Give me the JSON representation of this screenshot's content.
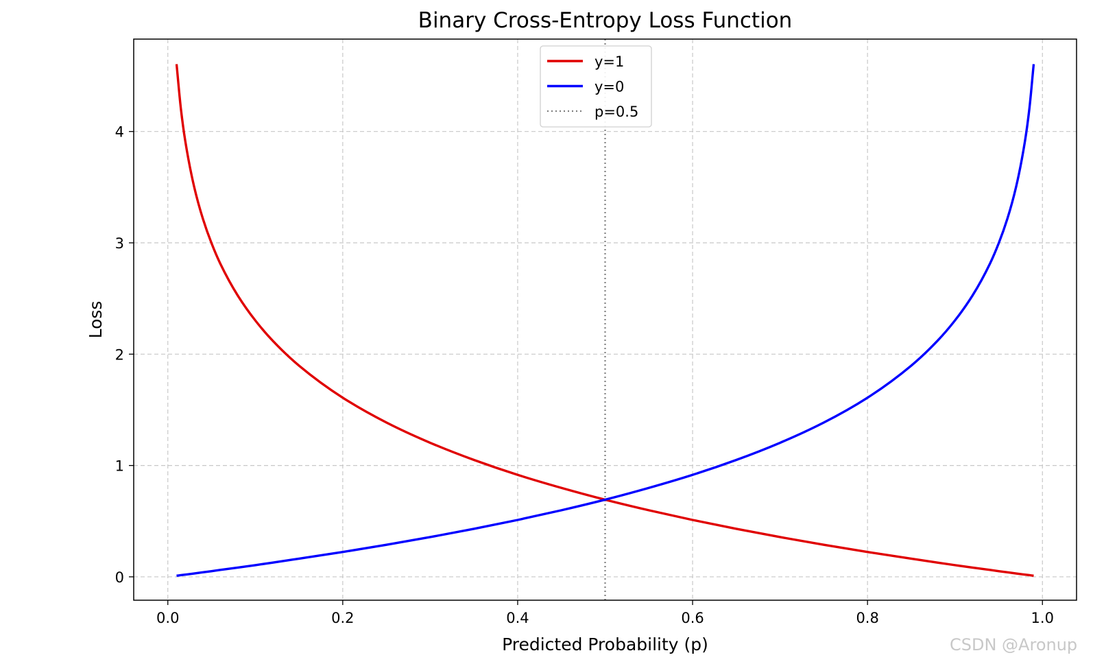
{
  "chart_data": {
    "type": "line",
    "title": "Binary Cross-Entropy Loss Function",
    "xlabel": "Predicted Probability (p)",
    "ylabel": "Loss",
    "xlim": [
      -0.039,
      1.039
    ],
    "ylim": [
      -0.21,
      4.83
    ],
    "xticks": [
      0.0,
      0.2,
      0.4,
      0.6,
      0.8,
      1.0
    ],
    "xtick_labels": [
      "0.0",
      "0.2",
      "0.4",
      "0.6",
      "0.8",
      "1.0"
    ],
    "yticks": [
      0,
      1,
      2,
      3,
      4
    ],
    "ytick_labels": [
      "0",
      "1",
      "2",
      "3",
      "4"
    ],
    "grid": true,
    "grid_style": "dashed",
    "legend_position": "upper center",
    "x": [
      0.01,
      0.015,
      0.02,
      0.03,
      0.04,
      0.05,
      0.06,
      0.08,
      0.1,
      0.12,
      0.15,
      0.2,
      0.25,
      0.3,
      0.35,
      0.4,
      0.45,
      0.5,
      0.55,
      0.6,
      0.65,
      0.7,
      0.75,
      0.8,
      0.85,
      0.88,
      0.9,
      0.92,
      0.94,
      0.95,
      0.96,
      0.97,
      0.98,
      0.985,
      0.99
    ],
    "series": [
      {
        "name": "y=1",
        "color": "#e00000",
        "style": "solid",
        "values": [
          4.605,
          4.2,
          3.912,
          3.507,
          3.219,
          2.996,
          2.813,
          2.526,
          2.303,
          2.12,
          1.897,
          1.609,
          1.386,
          1.204,
          1.05,
          0.916,
          0.799,
          0.693,
          0.598,
          0.511,
          0.431,
          0.357,
          0.288,
          0.223,
          0.163,
          0.128,
          0.105,
          0.083,
          0.062,
          0.051,
          0.041,
          0.03,
          0.02,
          0.015,
          0.01
        ]
      },
      {
        "name": "y=0",
        "color": "#0000ff",
        "style": "solid",
        "values": [
          0.01,
          0.015,
          0.02,
          0.03,
          0.041,
          0.051,
          0.062,
          0.083,
          0.105,
          0.128,
          0.163,
          0.223,
          0.288,
          0.357,
          0.431,
          0.511,
          0.598,
          0.693,
          0.799,
          0.916,
          1.05,
          1.204,
          1.386,
          1.609,
          1.897,
          2.12,
          2.303,
          2.526,
          2.813,
          2.996,
          3.219,
          3.507,
          3.912,
          4.2,
          4.605
        ]
      }
    ],
    "reference_lines": [
      {
        "name": "p=0.5",
        "orientation": "vertical",
        "x": 0.5,
        "color": "#7f7f7f",
        "style": "dotted"
      }
    ]
  },
  "watermark": "CSDN @Aronup"
}
